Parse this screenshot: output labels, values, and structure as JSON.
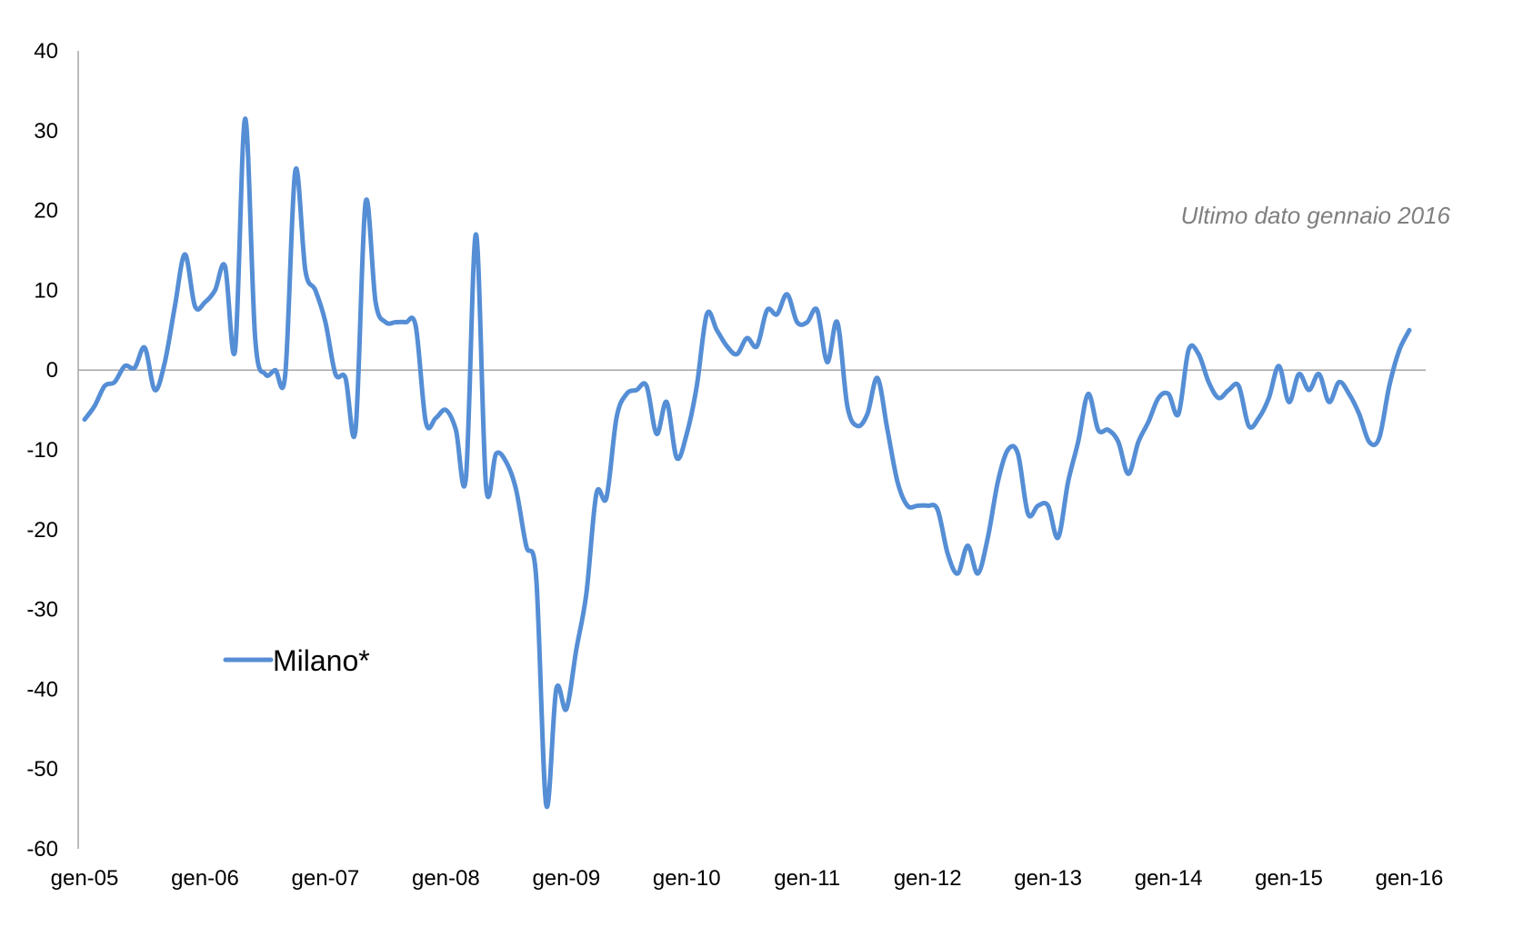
{
  "chart_data": {
    "type": "line",
    "title": "",
    "xlabel": "",
    "ylabel": "",
    "ylim": [
      -60,
      40
    ],
    "y_ticks": [
      40,
      30,
      20,
      10,
      0,
      -10,
      -20,
      -30,
      -40,
      -50,
      -60
    ],
    "x_tick_labels": [
      "gen-05",
      "gen-06",
      "gen-07",
      "gen-08",
      "gen-09",
      "gen-10",
      "gen-11",
      "gen-12",
      "gen-13",
      "gen-14",
      "gen-15",
      "gen-16"
    ],
    "x_start": "gen-05",
    "legend_position": "bottom-left",
    "annotation": "Ultimo dato gennaio 2016",
    "grid": false,
    "series": [
      {
        "name": "Milano*",
        "color": "#558ED5",
        "values": [
          -6.2,
          -4.5,
          -2.0,
          -1.5,
          0.5,
          0.3,
          2.8,
          -2.5,
          1.0,
          8.0,
          14.5,
          8.0,
          8.5,
          10.0,
          13.0,
          2.5,
          31.5,
          4.0,
          -0.5,
          0.0,
          -0.5,
          25.0,
          12.5,
          10.0,
          6.0,
          -0.5,
          -1.0,
          -7.5,
          21.0,
          8.5,
          6.0,
          6.0,
          6.0,
          5.5,
          -6.5,
          -6.0,
          -5.0,
          -7.5,
          -13.5,
          17.0,
          -14.5,
          -10.5,
          -11.5,
          -15.0,
          -22.0,
          -26.0,
          -54.5,
          -40.0,
          -42.5,
          -35.0,
          -28.0,
          -15.5,
          -16.0,
          -6.0,
          -3.0,
          -2.5,
          -2.0,
          -8.0,
          -4.0,
          -11.0,
          -8.0,
          -2.0,
          7.0,
          5.0,
          3.0,
          2.0,
          4.0,
          3.0,
          7.5,
          7.0,
          9.5,
          6.0,
          6.0,
          7.5,
          1.0,
          6.0,
          -4.5,
          -7.0,
          -5.5,
          -1.0,
          -7.5,
          -14.0,
          -17.0,
          -17.0,
          -17.0,
          -17.5,
          -23.0,
          -25.5,
          -22.0,
          -25.5,
          -21.0,
          -14.0,
          -10.0,
          -10.5,
          -18.0,
          -17.0,
          -17.0,
          -21.0,
          -14.0,
          -9.0,
          -3.0,
          -7.5,
          -7.5,
          -9.0,
          -13.0,
          -9.0,
          -6.5,
          -3.5,
          -3.0,
          -5.5,
          2.5,
          2.0,
          -1.5,
          -3.5,
          -2.5,
          -2.0,
          -7.0,
          -6.0,
          -3.5,
          0.5,
          -4.0,
          -0.5,
          -2.5,
          -0.5,
          -4.0,
          -1.5,
          -3.0,
          -5.5,
          -9.0,
          -8.5,
          -2.0,
          2.5,
          5.0
        ]
      }
    ]
  }
}
